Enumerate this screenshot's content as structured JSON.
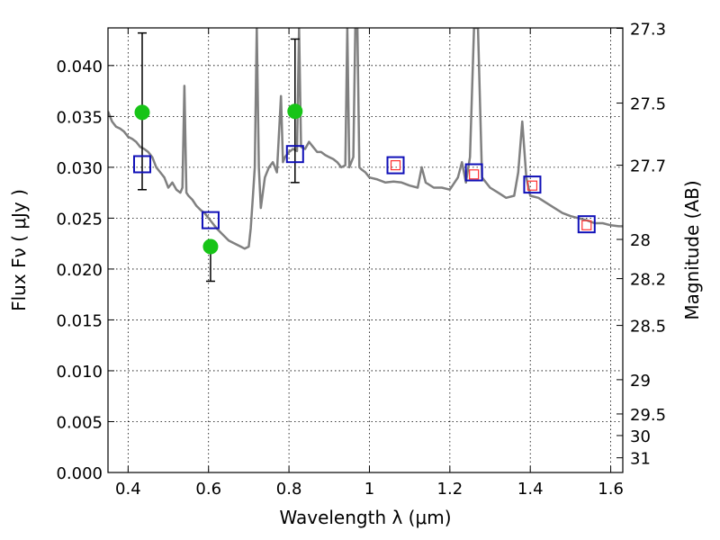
{
  "chart_data": {
    "type": "scatter",
    "xlabel": "Wavelength  λ (μm)",
    "ylabel": "Flux  Fν  ( μJy )",
    "y2label": "Magnitude (AB)",
    "xlim": [
      0.35,
      1.63
    ],
    "ylim": [
      0.0,
      0.0437
    ],
    "grid": true,
    "x_ticks": [
      0.4,
      0.6,
      0.8,
      1.0,
      1.2,
      1.4,
      1.6
    ],
    "x_tick_labels": [
      "0.4",
      "0.6",
      "0.8",
      "1",
      "1.2",
      "1.4",
      "1.6"
    ],
    "y_ticks": [
      0.0,
      0.005,
      0.01,
      0.015,
      0.02,
      0.025,
      0.03,
      0.035,
      0.04
    ],
    "y_tick_labels": [
      "0.000",
      "0.005",
      "0.010",
      "0.015",
      "0.020",
      "0.025",
      "0.030",
      "0.035",
      "0.040"
    ],
    "mag_ticks": [
      27.3,
      27.5,
      27.7,
      28,
      28.2,
      28.5,
      29,
      29.5,
      30,
      31
    ],
    "mag_tick_labels": [
      "27.3",
      "27.5",
      "27.7",
      "28",
      "28.2",
      "28.5",
      "29",
      "29.5",
      "30",
      "31"
    ],
    "series": [
      {
        "kind": "line",
        "color": "#808080",
        "points": [
          [
            0.35,
            0.0355
          ],
          [
            0.36,
            0.0345
          ],
          [
            0.37,
            0.034
          ],
          [
            0.38,
            0.0338
          ],
          [
            0.39,
            0.0335
          ],
          [
            0.4,
            0.033
          ],
          [
            0.41,
            0.0328
          ],
          [
            0.42,
            0.0325
          ],
          [
            0.43,
            0.032
          ],
          [
            0.44,
            0.0318
          ],
          [
            0.45,
            0.0315
          ],
          [
            0.46,
            0.031
          ],
          [
            0.47,
            0.03
          ],
          [
            0.48,
            0.0295
          ],
          [
            0.49,
            0.029
          ],
          [
            0.5,
            0.028
          ],
          [
            0.51,
            0.0285
          ],
          [
            0.52,
            0.0278
          ],
          [
            0.53,
            0.0275
          ],
          [
            0.535,
            0.028
          ],
          [
            0.54,
            0.038
          ],
          [
            0.545,
            0.0275
          ],
          [
            0.55,
            0.0272
          ],
          [
            0.56,
            0.0268
          ],
          [
            0.57,
            0.0262
          ],
          [
            0.58,
            0.0258
          ],
          [
            0.59,
            0.0255
          ],
          [
            0.6,
            0.025
          ],
          [
            0.61,
            0.0245
          ],
          [
            0.62,
            0.024
          ],
          [
            0.63,
            0.0236
          ],
          [
            0.64,
            0.0232
          ],
          [
            0.65,
            0.0228
          ],
          [
            0.66,
            0.0226
          ],
          [
            0.67,
            0.0224
          ],
          [
            0.68,
            0.0222
          ],
          [
            0.69,
            0.022
          ],
          [
            0.7,
            0.0222
          ],
          [
            0.705,
            0.024
          ],
          [
            0.71,
            0.027
          ],
          [
            0.715,
            0.03
          ],
          [
            0.72,
            0.0437
          ],
          [
            0.725,
            0.03
          ],
          [
            0.73,
            0.026
          ],
          [
            0.74,
            0.029
          ],
          [
            0.75,
            0.03
          ],
          [
            0.76,
            0.0305
          ],
          [
            0.77,
            0.0295
          ],
          [
            0.78,
            0.037
          ],
          [
            0.785,
            0.0305
          ],
          [
            0.79,
            0.031
          ],
          [
            0.8,
            0.0315
          ],
          [
            0.81,
            0.0318
          ],
          [
            0.82,
            0.0316
          ],
          [
            0.825,
            0.0437
          ],
          [
            0.83,
            0.032
          ],
          [
            0.84,
            0.0318
          ],
          [
            0.85,
            0.0325
          ],
          [
            0.86,
            0.032
          ],
          [
            0.87,
            0.0315
          ],
          [
            0.88,
            0.0315
          ],
          [
            0.89,
            0.0312
          ],
          [
            0.9,
            0.031
          ],
          [
            0.91,
            0.0308
          ],
          [
            0.92,
            0.0305
          ],
          [
            0.93,
            0.03
          ],
          [
            0.94,
            0.0302
          ],
          [
            0.945,
            0.0437
          ],
          [
            0.95,
            0.03
          ],
          [
            0.96,
            0.031
          ],
          [
            0.965,
            0.0437
          ],
          [
            0.97,
            0.0437
          ],
          [
            0.975,
            0.03
          ],
          [
            0.98,
            0.0298
          ],
          [
            0.99,
            0.0295
          ],
          [
            1.0,
            0.029
          ],
          [
            1.02,
            0.0288
          ],
          [
            1.04,
            0.0285
          ],
          [
            1.06,
            0.0286
          ],
          [
            1.08,
            0.0285
          ],
          [
            1.1,
            0.0282
          ],
          [
            1.12,
            0.028
          ],
          [
            1.13,
            0.03
          ],
          [
            1.14,
            0.0285
          ],
          [
            1.16,
            0.028
          ],
          [
            1.18,
            0.028
          ],
          [
            1.2,
            0.0278
          ],
          [
            1.22,
            0.029
          ],
          [
            1.23,
            0.0305
          ],
          [
            1.24,
            0.0285
          ],
          [
            1.25,
            0.031
          ],
          [
            1.26,
            0.0437
          ],
          [
            1.27,
            0.0437
          ],
          [
            1.28,
            0.029
          ],
          [
            1.3,
            0.028
          ],
          [
            1.32,
            0.0275
          ],
          [
            1.34,
            0.027
          ],
          [
            1.36,
            0.0272
          ],
          [
            1.37,
            0.0295
          ],
          [
            1.38,
            0.0345
          ],
          [
            1.39,
            0.029
          ],
          [
            1.4,
            0.0272
          ],
          [
            1.42,
            0.027
          ],
          [
            1.44,
            0.0265
          ],
          [
            1.46,
            0.026
          ],
          [
            1.48,
            0.0255
          ],
          [
            1.5,
            0.0252
          ],
          [
            1.52,
            0.025
          ],
          [
            1.54,
            0.0248
          ],
          [
            1.56,
            0.0245
          ],
          [
            1.58,
            0.0245
          ],
          [
            1.6,
            0.0243
          ],
          [
            1.62,
            0.0242
          ],
          [
            1.63,
            0.0242
          ]
        ]
      },
      {
        "kind": "points",
        "marker": "circle",
        "color": "#17c417",
        "points": [
          {
            "x": 0.435,
            "y": 0.0354,
            "err_low": 0.0278,
            "err_high": 0.0432
          },
          {
            "x": 0.605,
            "y": 0.0222,
            "err_low": 0.0188,
            "err_high": 0.0222
          },
          {
            "x": 0.815,
            "y": 0.0355,
            "err_low": 0.0285,
            "err_high": 0.0426
          }
        ]
      },
      {
        "kind": "points",
        "marker": "square",
        "color": "#1010b8",
        "points": [
          {
            "x": 0.435,
            "y": 0.0303
          },
          {
            "x": 0.605,
            "y": 0.0248
          },
          {
            "x": 0.815,
            "y": 0.0313
          },
          {
            "x": 1.065,
            "y": 0.0302
          },
          {
            "x": 1.26,
            "y": 0.0295
          },
          {
            "x": 1.405,
            "y": 0.0283
          },
          {
            "x": 1.54,
            "y": 0.0244
          }
        ]
      },
      {
        "kind": "points",
        "marker": "square-small",
        "color": "#ff3030",
        "points": [
          {
            "x": 1.065,
            "y": 0.0302
          },
          {
            "x": 1.26,
            "y": 0.0293
          },
          {
            "x": 1.405,
            "y": 0.0282
          },
          {
            "x": 1.54,
            "y": 0.0243
          }
        ]
      }
    ]
  }
}
